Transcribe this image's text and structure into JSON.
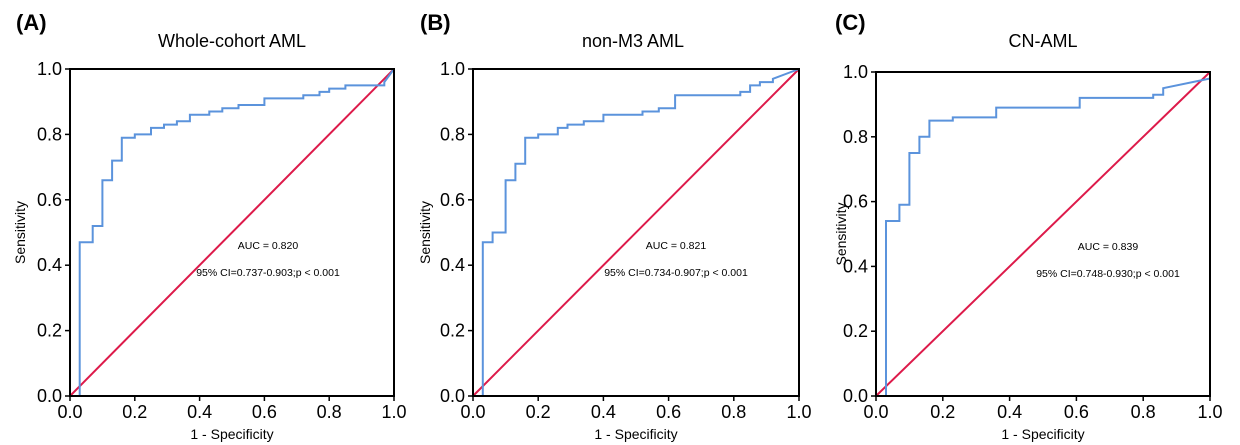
{
  "chart_data": [
    {
      "type": "line",
      "panel": "(A)",
      "title": "Whole-cohort AML",
      "xlabel": "1 - Specificity",
      "ylabel": "Sensitivity",
      "xlim": [
        0,
        1
      ],
      "ylim": [
        0,
        1
      ],
      "x_ticks": [
        "0.0",
        "0.2",
        "0.4",
        "0.6",
        "0.8",
        "1.0"
      ],
      "y_ticks": [
        "0.0",
        "0.2",
        "0.4",
        "0.6",
        "0.8",
        "1.0"
      ],
      "grid": false,
      "annotations": [
        "AUC = 0.820",
        "95% CI=0.737-0.903;p < 0.001"
      ],
      "colors": {
        "roc": "#5b93dc",
        "reference": "#dd1a4a"
      },
      "series": [
        {
          "role": "roc",
          "x": [
            0,
            0.03,
            0.03,
            0.07,
            0.07,
            0.1,
            0.1,
            0.13,
            0.13,
            0.16,
            0.16,
            0.2,
            0.2,
            0.25,
            0.25,
            0.29,
            0.29,
            0.33,
            0.33,
            0.37,
            0.37,
            0.43,
            0.43,
            0.47,
            0.47,
            0.52,
            0.52,
            0.6,
            0.6,
            0.72,
            0.72,
            0.77,
            0.77,
            0.8,
            0.8,
            0.85,
            0.85,
            0.97,
            0.97,
            1.0
          ],
          "y": [
            0,
            0,
            0.47,
            0.47,
            0.52,
            0.52,
            0.66,
            0.66,
            0.72,
            0.72,
            0.79,
            0.79,
            0.8,
            0.8,
            0.82,
            0.82,
            0.83,
            0.83,
            0.84,
            0.84,
            0.86,
            0.86,
            0.87,
            0.87,
            0.88,
            0.88,
            0.89,
            0.89,
            0.91,
            0.91,
            0.92,
            0.92,
            0.93,
            0.93,
            0.94,
            0.94,
            0.95,
            0.95,
            0.96,
            1.0
          ]
        },
        {
          "role": "reference",
          "x": [
            0,
            1
          ],
          "y": [
            0,
            1
          ]
        }
      ]
    },
    {
      "type": "line",
      "panel": "(B)",
      "title": "non-M3 AML",
      "xlabel": "1 - Specificity",
      "ylabel": "Sensitivity",
      "xlim": [
        0,
        1
      ],
      "ylim": [
        0,
        1
      ],
      "x_ticks": [
        "0.0",
        "0.2",
        "0.4",
        "0.6",
        "0.8",
        "1.0"
      ],
      "y_ticks": [
        "0.0",
        "0.2",
        "0.4",
        "0.6",
        "0.8",
        "1.0"
      ],
      "grid": false,
      "annotations": [
        "AUC = 0.821",
        "95% CI=0.734-0.907;p < 0.001"
      ],
      "colors": {
        "roc": "#5b93dc",
        "reference": "#dd1a4a"
      },
      "series": [
        {
          "role": "roc",
          "x": [
            0,
            0.03,
            0.03,
            0.06,
            0.06,
            0.1,
            0.1,
            0.13,
            0.13,
            0.16,
            0.16,
            0.2,
            0.2,
            0.26,
            0.26,
            0.29,
            0.29,
            0.34,
            0.34,
            0.4,
            0.4,
            0.52,
            0.52,
            0.57,
            0.57,
            0.62,
            0.62,
            0.82,
            0.82,
            0.85,
            0.85,
            0.88,
            0.88,
            0.92,
            0.92,
            1.0
          ],
          "y": [
            0,
            0,
            0.47,
            0.47,
            0.5,
            0.5,
            0.66,
            0.66,
            0.71,
            0.71,
            0.79,
            0.79,
            0.8,
            0.8,
            0.82,
            0.82,
            0.83,
            0.83,
            0.84,
            0.84,
            0.86,
            0.86,
            0.87,
            0.87,
            0.88,
            0.88,
            0.92,
            0.92,
            0.93,
            0.93,
            0.95,
            0.95,
            0.96,
            0.96,
            0.97,
            1.0
          ]
        },
        {
          "role": "reference",
          "x": [
            0,
            1
          ],
          "y": [
            0,
            1
          ]
        }
      ]
    },
    {
      "type": "line",
      "panel": "(C)",
      "title": "CN-AML",
      "xlabel": "1 - Specificity",
      "ylabel": "Sensitivity",
      "xlim": [
        0,
        1
      ],
      "ylim": [
        0,
        1
      ],
      "x_ticks": [
        "0.0",
        "0.2",
        "0.4",
        "0.6",
        "0.8",
        "1.0"
      ],
      "y_ticks": [
        "0.0",
        "0.2",
        "0.4",
        "0.6",
        "0.8",
        "1.0"
      ],
      "grid": false,
      "annotations": [
        "AUC = 0.839",
        "95% CI=0.748-0.930;p < 0.001"
      ],
      "colors": {
        "roc": "#5b93dc",
        "reference": "#dd1a4a"
      },
      "series": [
        {
          "role": "roc",
          "x": [
            0,
            0.03,
            0.03,
            0.07,
            0.07,
            0.1,
            0.1,
            0.13,
            0.13,
            0.16,
            0.16,
            0.23,
            0.23,
            0.36,
            0.36,
            0.61,
            0.61,
            0.83,
            0.83,
            0.86,
            0.86,
            1.0
          ],
          "y": [
            0,
            0,
            0.54,
            0.54,
            0.59,
            0.59,
            0.75,
            0.75,
            0.8,
            0.8,
            0.85,
            0.85,
            0.86,
            0.86,
            0.89,
            0.89,
            0.92,
            0.92,
            0.93,
            0.93,
            0.95,
            0.98
          ]
        },
        {
          "role": "reference",
          "x": [
            0,
            1
          ],
          "y": [
            0,
            1
          ]
        }
      ]
    }
  ]
}
